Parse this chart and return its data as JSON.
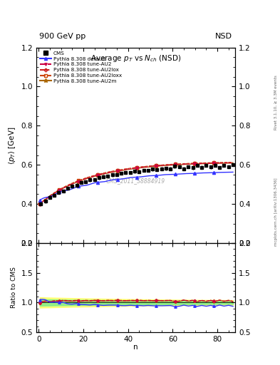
{
  "top_left_label": "900 GeV pp",
  "top_right_label": "NSD",
  "ylabel_main": "$\\langle p_T\\rangle$ [GeV]",
  "ylabel_ratio": "Ratio to CMS",
  "xlabel": "n",
  "watermark": "CMS_2011_S8884919",
  "right_label": "mcplots.cern.ch [arXiv:1306.3436]",
  "right_label2": "Rivet 3.1.10, ≥ 3.3M events",
  "ylim_main": [
    0.2,
    1.2
  ],
  "ylim_ratio": [
    0.5,
    2.0
  ],
  "yticks_main": [
    0.2,
    0.4,
    0.6,
    0.8,
    1.0,
    1.2
  ],
  "yticks_ratio": [
    0.5,
    1.0,
    1.5,
    2.0
  ],
  "xlim": [
    -1,
    88
  ],
  "xticks": [
    0,
    20,
    40,
    60,
    80
  ],
  "default_color": "#3333ff",
  "au2_color": "#cc0044",
  "au2lox_color": "#cc2222",
  "au2loxx_color": "#cc4400",
  "au2m_color": "#aa6600",
  "legend_entries": [
    "CMS",
    "Pythia 8.308 default",
    "Pythia 8.308 tune-AU2",
    "Pythia 8.308 tune-AU2lox",
    "Pythia 8.308 tune-AU2loxx",
    "Pythia 8.308 tune-AU2m"
  ]
}
